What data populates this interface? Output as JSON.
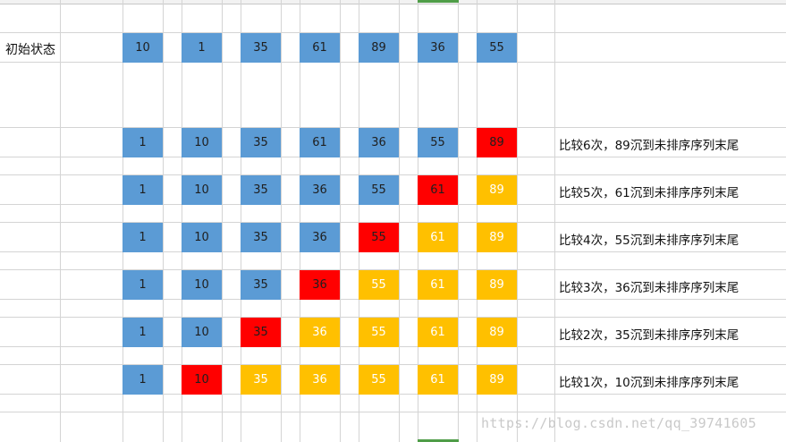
{
  "colors": {
    "blue": "#5b9bd5",
    "red": "#ff0000",
    "yellow": "#ffc000",
    "grid": "#d4d4d4",
    "selected_column": "#4f9d48"
  },
  "initial_label": "初始状态",
  "rows": [
    {
      "values": [
        "10",
        "1",
        "35",
        "61",
        "89",
        "36",
        "55"
      ],
      "styles": [
        "b",
        "b",
        "b",
        "b",
        "b",
        "b",
        "b"
      ],
      "description": ""
    },
    {
      "values": [
        "1",
        "10",
        "35",
        "61",
        "36",
        "55",
        "89"
      ],
      "styles": [
        "b",
        "b",
        "b",
        "b",
        "b",
        "b",
        "r"
      ],
      "description": "比较6次，89沉到未排序序列末尾"
    },
    {
      "values": [
        "1",
        "10",
        "35",
        "36",
        "55",
        "61",
        "89"
      ],
      "styles": [
        "b",
        "b",
        "b",
        "b",
        "b",
        "r",
        "y"
      ],
      "description": "比较5次，61沉到未排序序列末尾"
    },
    {
      "values": [
        "1",
        "10",
        "35",
        "36",
        "55",
        "61",
        "89"
      ],
      "styles": [
        "b",
        "b",
        "b",
        "b",
        "r",
        "y",
        "y"
      ],
      "description": "比较4次，55沉到未排序序列末尾"
    },
    {
      "values": [
        "1",
        "10",
        "35",
        "36",
        "55",
        "61",
        "89"
      ],
      "styles": [
        "b",
        "b",
        "b",
        "r",
        "y",
        "y",
        "y"
      ],
      "description": "比较3次，36沉到未排序序列末尾"
    },
    {
      "values": [
        "1",
        "10",
        "35",
        "36",
        "55",
        "61",
        "89"
      ],
      "styles": [
        "b",
        "b",
        "r",
        "y",
        "y",
        "y",
        "y"
      ],
      "description": "比较2次，35沉到未排序序列末尾"
    },
    {
      "values": [
        "1",
        "10",
        "35",
        "36",
        "55",
        "61",
        "89"
      ],
      "styles": [
        "b",
        "r",
        "y",
        "y",
        "y",
        "y",
        "y"
      ],
      "description": "比较1次，10沉到未排序序列末尾"
    }
  ],
  "watermark": "https://blog.csdn.net/qq_39741605"
}
